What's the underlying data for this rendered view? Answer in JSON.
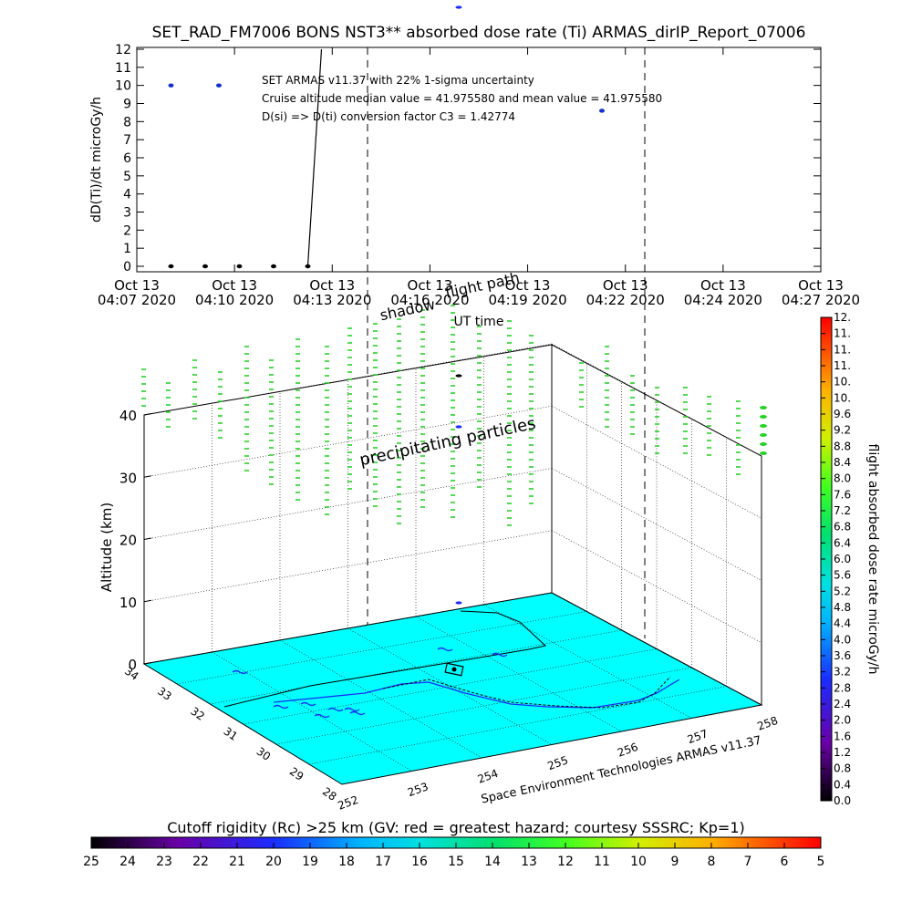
{
  "title": "SET_RAD_FM7006  BONS NST3** absorbed dose rate (Ti) ARMAS_dirIP_Report_07006",
  "annotations": {
    "line1": "SET ARMAS v11.37 with 22% 1-sigma uncertainty",
    "line2": "Cruise altitude median value = 41.975580 and mean value = 41.975580",
    "line3": "D(si) => D(ti) conversion factor C3 = 1.42774"
  },
  "chart_data": [
    {
      "type": "scatter",
      "title": "SET_RAD_FM7006  BONS NST3** absorbed dose rate (Ti) ARMAS_dirIP_Report_07006",
      "xlabel": "UT time",
      "ylabel": "dD(Ti)/dt microGy/h",
      "ylim": [
        0,
        12
      ],
      "yticks": [
        "0",
        "1",
        "2",
        "3",
        "4",
        "5",
        "6",
        "7",
        "8",
        "9",
        "10",
        "11",
        "12"
      ],
      "xtick_labels": [
        [
          "Oct 13",
          "04:07 2020"
        ],
        [
          "Oct 13",
          "04:10 2020"
        ],
        [
          "Oct 13",
          "04:13 2020"
        ],
        [
          "Oct 13",
          "04:16 2020"
        ],
        [
          "Oct 13",
          "04:19 2020"
        ],
        [
          "Oct 13",
          "04:22 2020"
        ],
        [
          "Oct 13",
          "04:24 2020"
        ],
        [
          "Oct 13",
          "04:27 2020"
        ]
      ],
      "xlim_minutes": [
        0,
        20
      ],
      "markers": [
        {
          "label": "shadow",
          "t": 4.8
        },
        {
          "label": "flight path",
          "t": 15.2
        }
      ],
      "series": [
        {
          "color": "#1030d0",
          "points": [
            [
              1.0,
              10.0
            ],
            [
              2.4,
              10.0
            ],
            [
              13.6,
              8.6
            ]
          ]
        },
        {
          "color": "#000000",
          "points": [
            [
              1.0,
              0
            ],
            [
              2.0,
              0
            ],
            [
              3.0,
              0
            ],
            [
              4.0,
              0
            ],
            [
              5.0,
              0
            ]
          ]
        },
        {
          "color": "#000000",
          "line": [
            [
              5.0,
              0
            ],
            [
              5.4,
              12
            ]
          ]
        }
      ]
    },
    {
      "type": "scatter",
      "xlabel": "Space Environment Technologies ARMAS v11.37",
      "ylabel": "Altitude (km)",
      "zticks": [
        "0",
        "10",
        "20",
        "30",
        "40"
      ],
      "lon_ticks": [
        "252",
        "253",
        "254",
        "255",
        "256",
        "257",
        "258"
      ],
      "lat_ticks": [
        "28",
        "29",
        "30",
        "31",
        "32",
        "33",
        "34"
      ],
      "labels": {
        "shadow": "shadow",
        "flight_path": "flight path",
        "precipitating": "precipitating particles"
      },
      "surface_color": "#00ffff",
      "dose_color": "#28d228"
    },
    {
      "type": "colorbar",
      "label": "flight absorbed dose rate microGy/h",
      "ticks": [
        "0.0",
        "0.4",
        "0.8",
        "1.2",
        "1.6",
        "2.0",
        "2.4",
        "2.8",
        "3.2",
        "3.6",
        "4.0",
        "4.4",
        "4.8",
        "5.2",
        "5.6",
        "6.0",
        "6.4",
        "6.8",
        "7.2",
        "7.6",
        "8.0",
        "8.4",
        "8.8",
        "9.2",
        "9.6",
        "10.",
        "10.",
        "11.",
        "11.",
        "11.",
        "12."
      ]
    },
    {
      "type": "colorbar",
      "label": "Cutoff rigidity (Rc) >25 km (GV: red = greatest hazard; courtesy SSSRC; Kp=1)",
      "ticks": [
        "25",
        "24",
        "23",
        "22",
        "21",
        "20",
        "19",
        "18",
        "17",
        "16",
        "15",
        "14",
        "13",
        "12",
        "11",
        "10",
        "9",
        "8",
        "7",
        "6",
        "5"
      ]
    }
  ]
}
